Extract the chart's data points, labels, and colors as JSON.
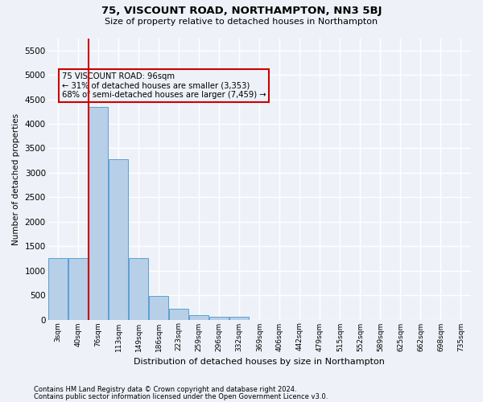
{
  "title": "75, VISCOUNT ROAD, NORTHAMPTON, NN3 5BJ",
  "subtitle": "Size of property relative to detached houses in Northampton",
  "xlabel": "Distribution of detached houses by size in Northampton",
  "ylabel": "Number of detached properties",
  "bar_values": [
    1250,
    1250,
    4350,
    3270,
    1260,
    490,
    215,
    90,
    55,
    55,
    0,
    0,
    0,
    0,
    0,
    0,
    0,
    0,
    0,
    0,
    0
  ],
  "bar_labels": [
    "3sqm",
    "40sqm",
    "76sqm",
    "113sqm",
    "149sqm",
    "186sqm",
    "223sqm",
    "259sqm",
    "296sqm",
    "332sqm",
    "369sqm",
    "406sqm",
    "442sqm",
    "479sqm",
    "515sqm",
    "552sqm",
    "589sqm",
    "625sqm",
    "662sqm",
    "698sqm",
    "735sqm"
  ],
  "bar_color": "#b8cfe8",
  "bar_edge_color": "#5a9fd4",
  "vline_x": 1.5,
  "vline_color": "#cc0000",
  "annotation_text": "75 VISCOUNT ROAD: 96sqm\n← 31% of detached houses are smaller (3,353)\n68% of semi-detached houses are larger (7,459) →",
  "annotation_box_color": "#cc0000",
  "ylim": [
    0,
    5750
  ],
  "yticks": [
    0,
    500,
    1000,
    1500,
    2000,
    2500,
    3000,
    3500,
    4000,
    4500,
    5000,
    5500
  ],
  "footer_line1": "Contains HM Land Registry data © Crown copyright and database right 2024.",
  "footer_line2": "Contains public sector information licensed under the Open Government Licence v3.0.",
  "background_color": "#eef2f8",
  "grid_color": "#ffffff"
}
